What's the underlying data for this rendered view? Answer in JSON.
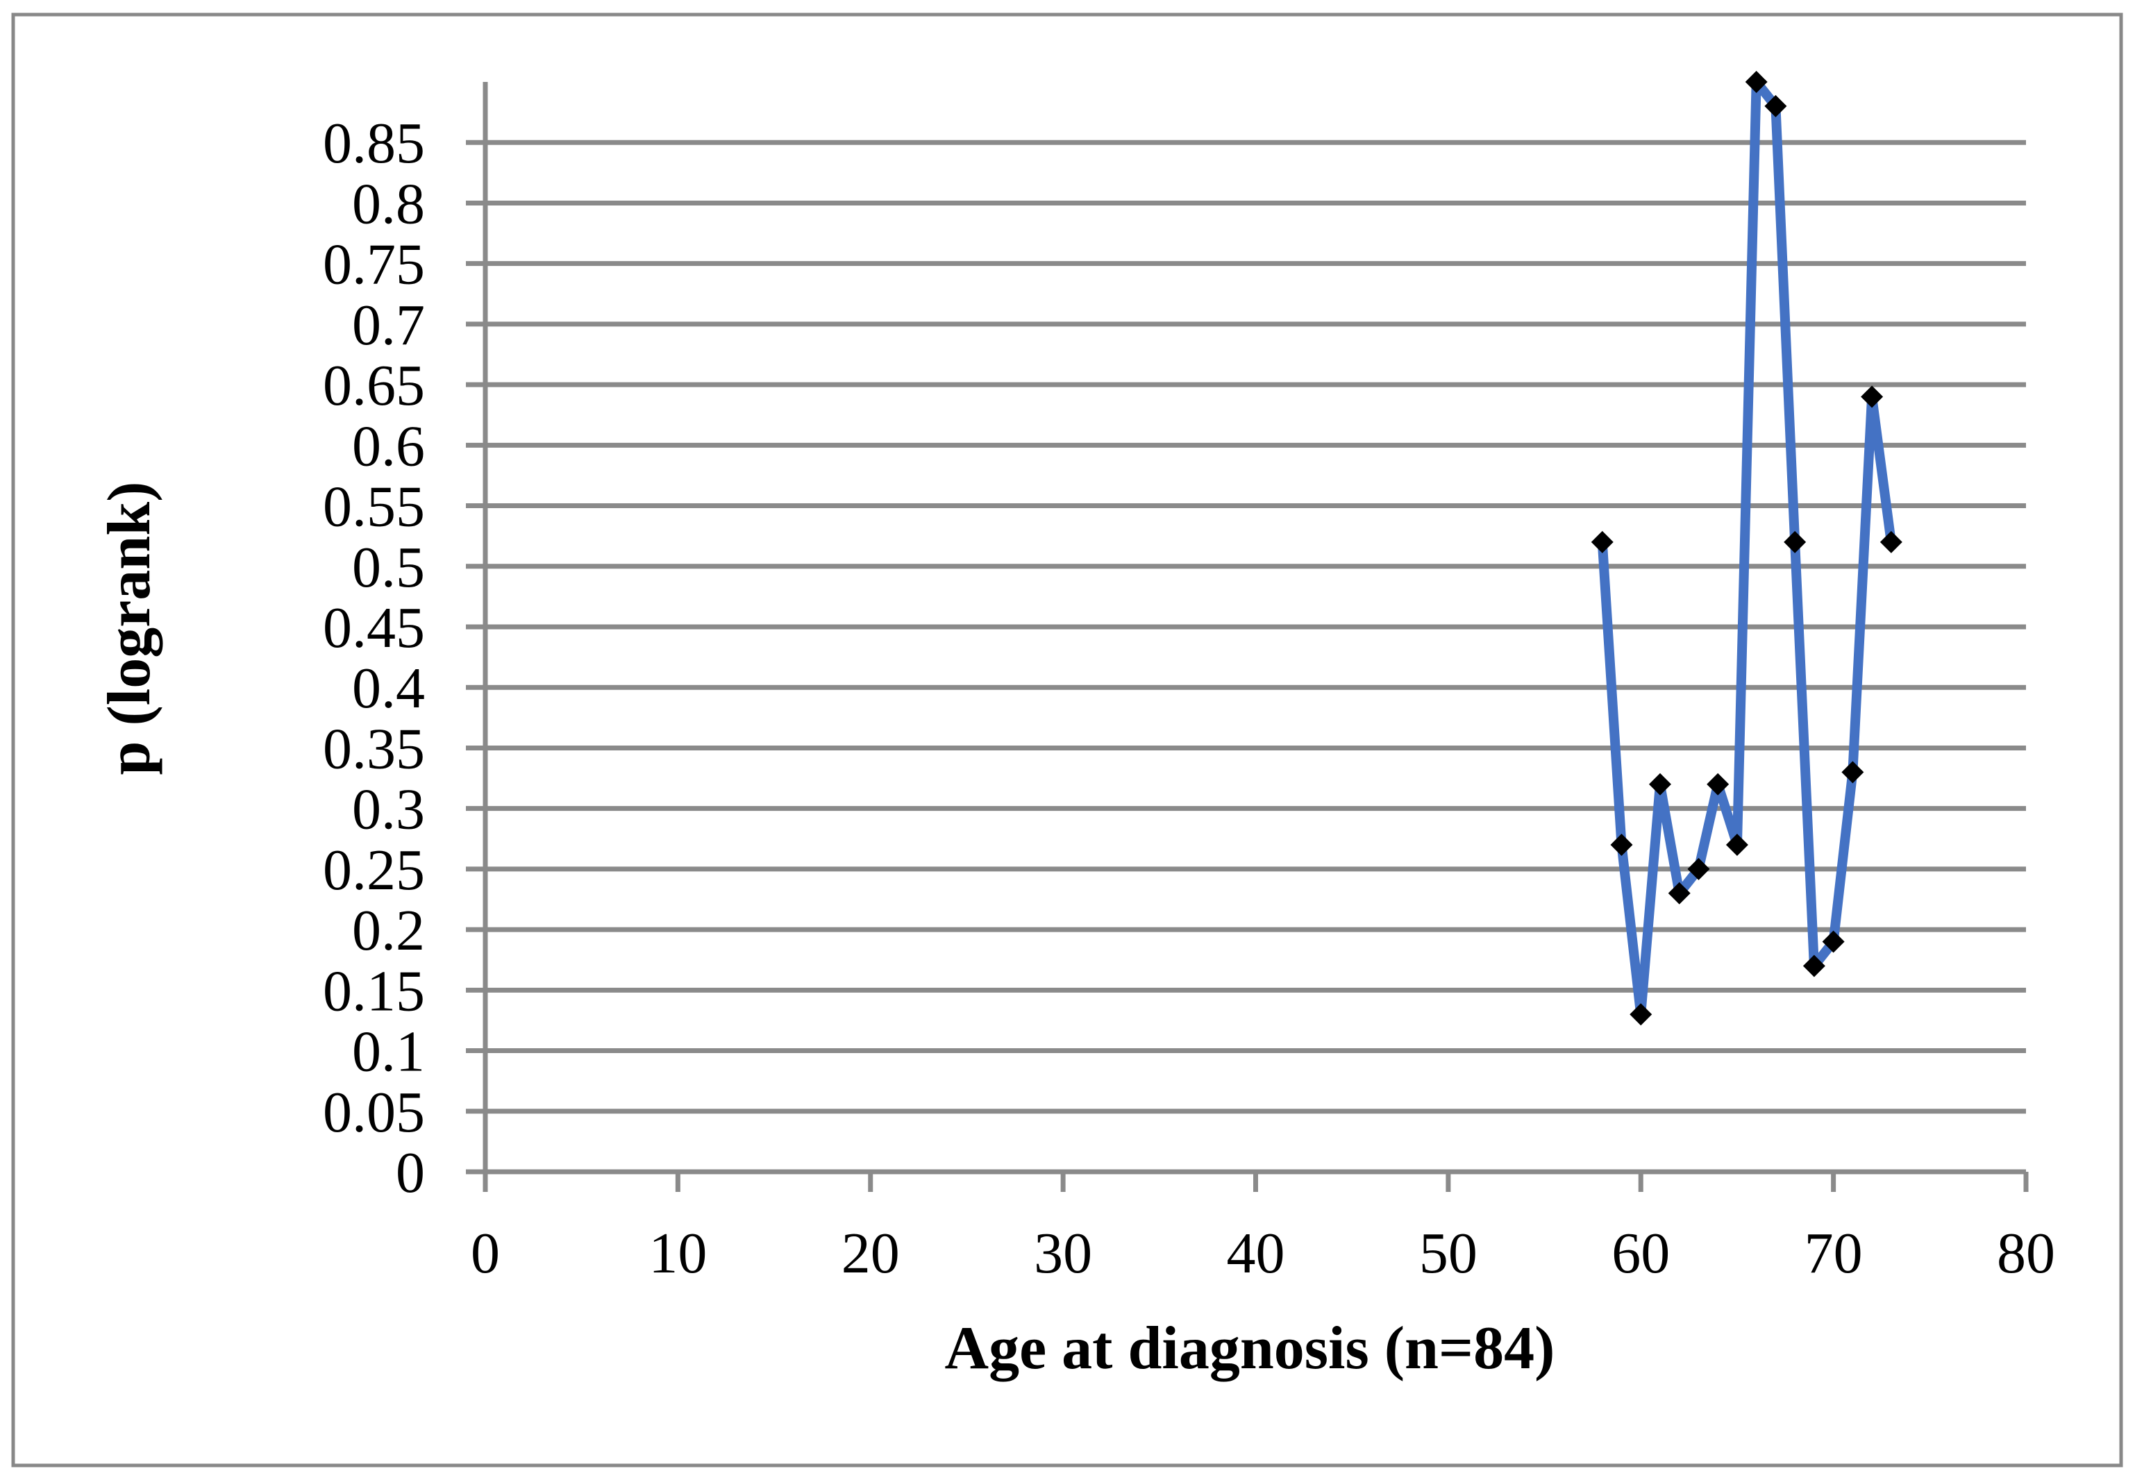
{
  "figure": {
    "background": "#ffffff",
    "border_color": "#888888"
  },
  "chart_data": {
    "type": "line",
    "title": "",
    "xlabel": "Age at diagnosis (n=84)",
    "ylabel": "p (logrank)",
    "x": [
      58,
      59,
      60,
      61,
      62,
      63,
      64,
      65,
      66,
      67,
      68,
      69,
      70,
      71,
      72,
      73
    ],
    "series": [
      {
        "name": "p (logrank)",
        "values": [
          0.52,
          0.27,
          0.13,
          0.32,
          0.23,
          0.25,
          0.32,
          0.27,
          0.9,
          0.88,
          0.52,
          0.17,
          0.19,
          0.33,
          0.64,
          0.52
        ],
        "color": "#4472C4",
        "marker": "diamond",
        "marker_color": "#000000"
      }
    ],
    "xlim": [
      0,
      80
    ],
    "ylim": [
      0,
      0.9
    ],
    "x_ticks": [
      {
        "value": 0,
        "label": "0"
      },
      {
        "value": 10,
        "label": "10"
      },
      {
        "value": 20,
        "label": "20"
      },
      {
        "value": 30,
        "label": "30"
      },
      {
        "value": 40,
        "label": "40"
      },
      {
        "value": 50,
        "label": "50"
      },
      {
        "value": 60,
        "label": "60"
      },
      {
        "value": 70,
        "label": "70"
      },
      {
        "value": 80,
        "label": "80"
      }
    ],
    "y_ticks": [
      {
        "value": 0,
        "label": "0"
      },
      {
        "value": 0.05,
        "label": "0.05"
      },
      {
        "value": 0.1,
        "label": "0.1"
      },
      {
        "value": 0.15,
        "label": "0.15"
      },
      {
        "value": 0.2,
        "label": "0.2"
      },
      {
        "value": 0.25,
        "label": "0.25"
      },
      {
        "value": 0.3,
        "label": "0.3"
      },
      {
        "value": 0.35,
        "label": "0.35"
      },
      {
        "value": 0.4,
        "label": "0.4"
      },
      {
        "value": 0.45,
        "label": "0.45"
      },
      {
        "value": 0.5,
        "label": "0.5"
      },
      {
        "value": 0.55,
        "label": "0.55"
      },
      {
        "value": 0.6,
        "label": "0.6"
      },
      {
        "value": 0.65,
        "label": "0.65"
      },
      {
        "value": 0.7,
        "label": "0.7"
      },
      {
        "value": 0.75,
        "label": "0.75"
      },
      {
        "value": 0.8,
        "label": "0.8"
      },
      {
        "value": 0.85,
        "label": "0.85"
      }
    ],
    "grid": "horizontal",
    "grid_color": "#8a8a8a",
    "axis_color": "#8a8a8a",
    "legend": "none"
  }
}
